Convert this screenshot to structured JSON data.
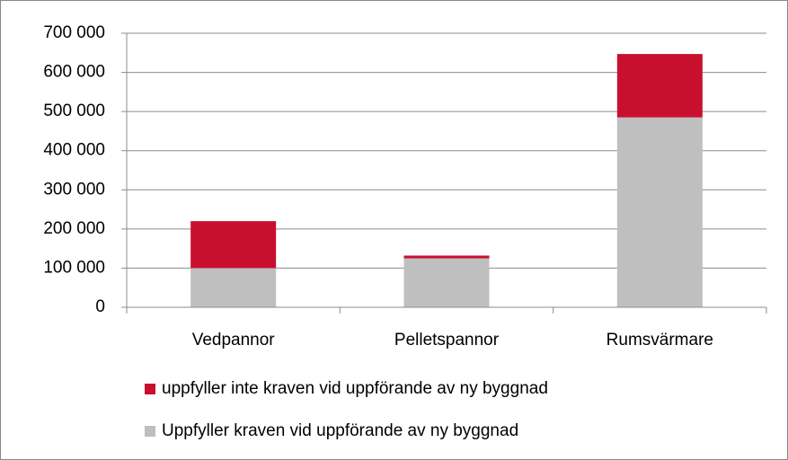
{
  "chart_data": {
    "type": "stacked_bar",
    "categories": [
      "Vedpannor",
      "Pelletspannor",
      "Rumsvärmare"
    ],
    "series": [
      {
        "name": "uppfyller inte kraven vid uppförande av ny byggnad",
        "color": "#c8102e",
        "values": [
          120000,
          7000,
          162000
        ]
      },
      {
        "name": "Uppfyller kraven vid uppförande av ny byggnad",
        "color": "#bfbfbf",
        "values": [
          100000,
          125000,
          485000
        ]
      }
    ],
    "ylim": [
      0,
      700000
    ],
    "yticks": [
      0,
      {
        "value": 100000,
        "label": "100 000"
      },
      {
        "value": 200000,
        "label": "200 000"
      },
      {
        "value": 300000,
        "label": "300 000"
      },
      {
        "value": 400000,
        "label": "400 000"
      },
      {
        "value": 500000,
        "label": "500 000"
      },
      {
        "value": 600000,
        "label": "600 000"
      },
      {
        "value": 700000,
        "label": "700 000"
      }
    ],
    "grid": true,
    "legend": "bottom"
  }
}
